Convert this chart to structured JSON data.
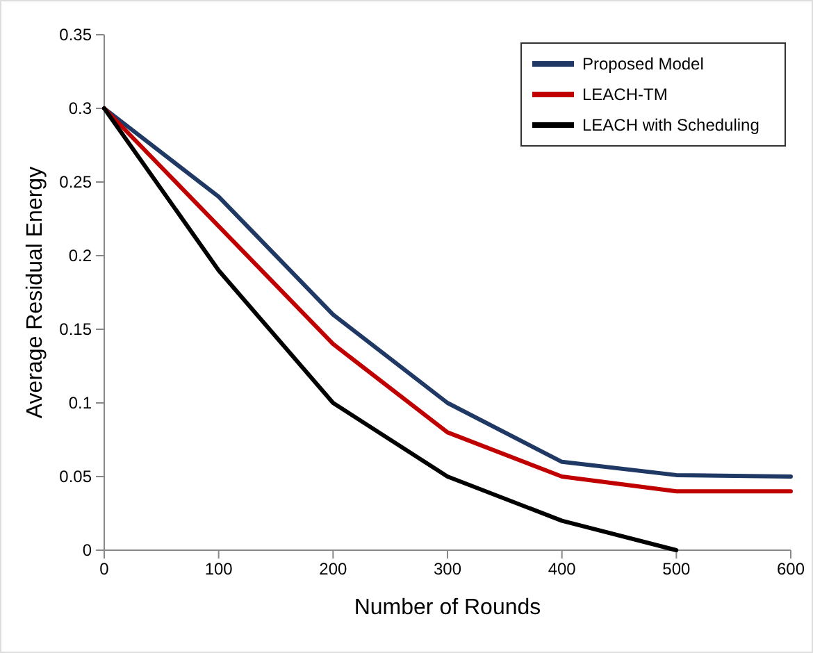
{
  "chart_data": {
    "type": "line",
    "xlabel": "Number of Rounds",
    "ylabel": "Average Residual Energy",
    "x": [
      0,
      100,
      200,
      300,
      400,
      500,
      600
    ],
    "series": [
      {
        "name": "Proposed Model",
        "color": "#1f3864",
        "values": [
          0.3,
          0.24,
          0.16,
          0.1,
          0.06,
          0.051,
          0.05
        ]
      },
      {
        "name": "LEACH-TM",
        "color": "#c00000",
        "values": [
          0.3,
          0.22,
          0.14,
          0.08,
          0.05,
          0.04,
          0.04
        ]
      },
      {
        "name": "LEACH with Scheduling",
        "color": "#000000",
        "values": [
          0.3,
          0.19,
          0.1,
          0.05,
          0.02,
          0,
          null
        ]
      }
    ],
    "xlim": [
      0,
      600
    ],
    "xticks": [
      0,
      100,
      200,
      300,
      400,
      500,
      600
    ],
    "ylim": [
      0,
      0.35
    ],
    "yticks": [
      0,
      0.05,
      0.1,
      0.15,
      0.2,
      0.25,
      0.3,
      0.35
    ],
    "grid": false,
    "legend": "top right",
    "marker": "none",
    "line_style": "solid"
  }
}
